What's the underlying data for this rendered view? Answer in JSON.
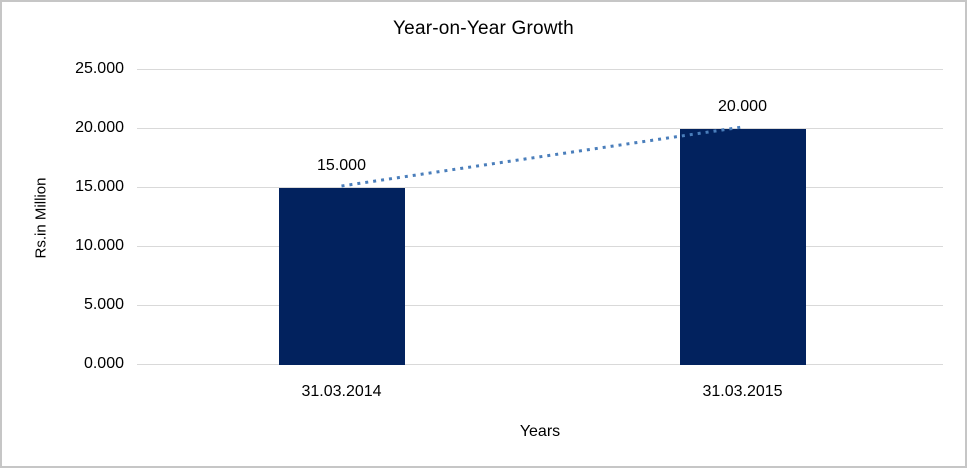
{
  "chart_data": {
    "type": "bar",
    "title": "Year-on-Year Growth",
    "categories": [
      "31.03.2014",
      "31.03.2015"
    ],
    "values": [
      15.0,
      20.0
    ],
    "data_labels": [
      "15.000",
      "20.000"
    ],
    "xlabel": "Years",
    "ylabel": "Rs.in Million",
    "ylim": [
      0,
      25
    ],
    "yticks": [
      0,
      5,
      10,
      15,
      20,
      25
    ],
    "ytick_labels": [
      "0.000",
      "5.000",
      "10.000",
      "15.000",
      "20.000",
      "25.000"
    ],
    "grid": true,
    "legend": "none",
    "bar_color": "#02225e",
    "gridline_color": "#d9d9d9",
    "trendline": {
      "style": "dotted",
      "color": "#4a7ebb",
      "from": {
        "category": "31.03.2014",
        "value": 15.0
      },
      "to": {
        "category": "31.03.2015",
        "value": 20.0
      }
    },
    "frame_color": "#c6c6c6"
  }
}
